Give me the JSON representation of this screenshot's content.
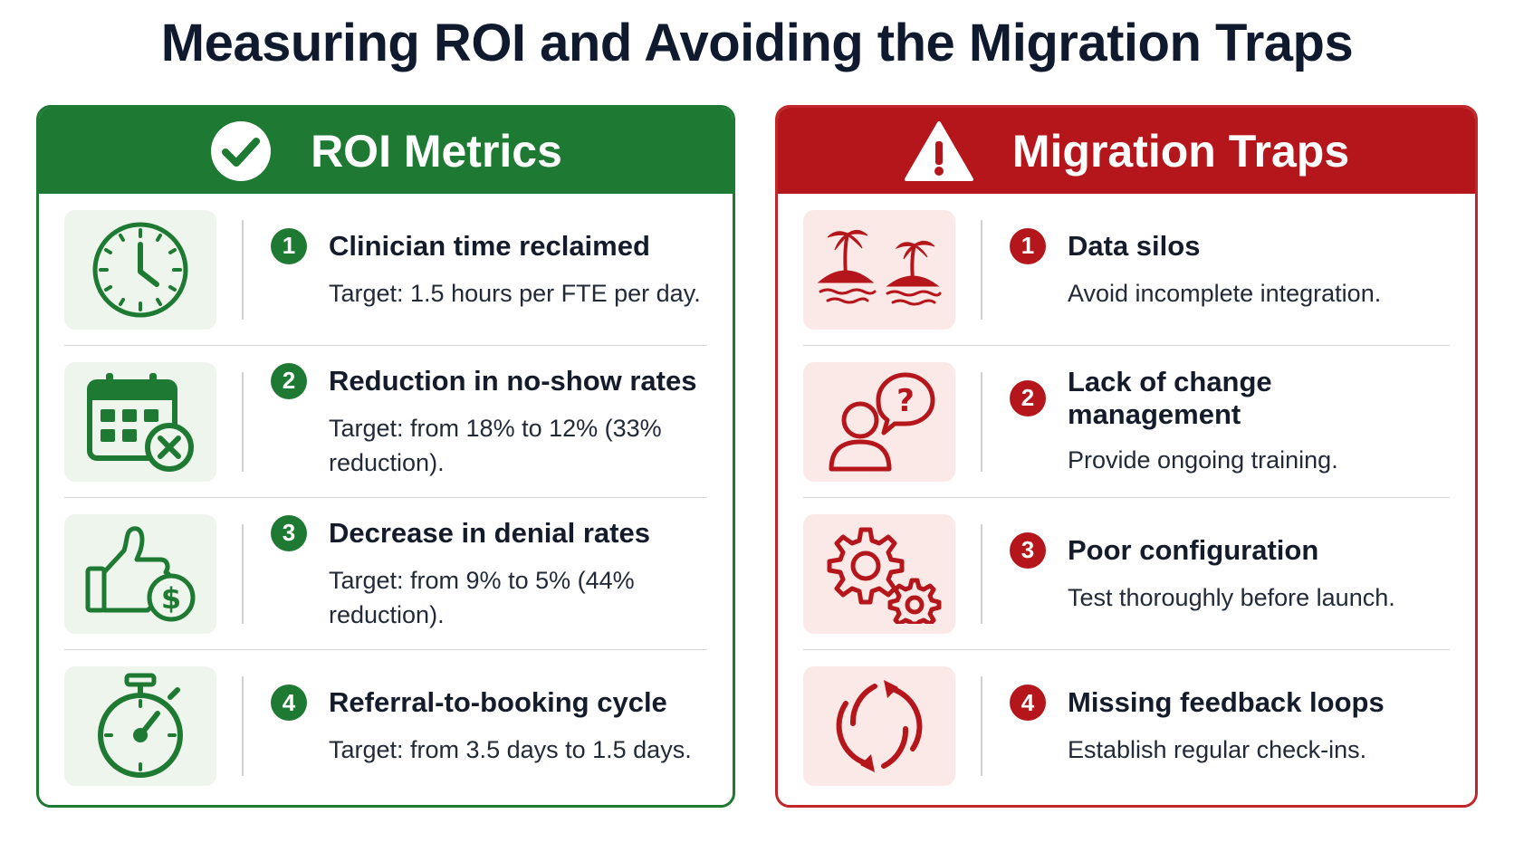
{
  "title": "Measuring ROI and Avoiding the Migration Traps",
  "colors": {
    "green": "#1e7a32",
    "red": "#b5161b"
  },
  "roi": {
    "heading": "ROI Metrics",
    "header_icon": "check-circle-icon",
    "items": [
      {
        "num": "1",
        "icon": "clock-icon",
        "title": "Clinician time reclaimed",
        "desc": "Target: 1.5 hours per FTE per day."
      },
      {
        "num": "2",
        "icon": "calendar-cancel-icon",
        "title": "Reduction in no-show rates",
        "desc": "Target: from 18% to 12% (33% reduction)."
      },
      {
        "num": "3",
        "icon": "thumbs-up-dollar-icon",
        "title": "Decrease in denial rates",
        "desc": "Target: from 9% to 5% (44% reduction)."
      },
      {
        "num": "4",
        "icon": "stopwatch-icon",
        "title": "Referral-to-booking cycle",
        "desc": "Target: from 3.5 days to 1.5 days."
      }
    ]
  },
  "traps": {
    "heading": "Migration Traps",
    "header_icon": "warning-icon",
    "items": [
      {
        "num": "1",
        "icon": "islands-icon",
        "title": "Data silos",
        "desc": "Avoid incomplete integration."
      },
      {
        "num": "2",
        "icon": "person-question-icon",
        "title": "Lack of change management",
        "desc": "Provide ongoing training."
      },
      {
        "num": "3",
        "icon": "gears-icon",
        "title": "Poor configuration",
        "desc": "Test thoroughly before launch."
      },
      {
        "num": "4",
        "icon": "refresh-cycle-icon",
        "title": "Missing feedback loops",
        "desc": "Establish regular check-ins."
      }
    ]
  }
}
